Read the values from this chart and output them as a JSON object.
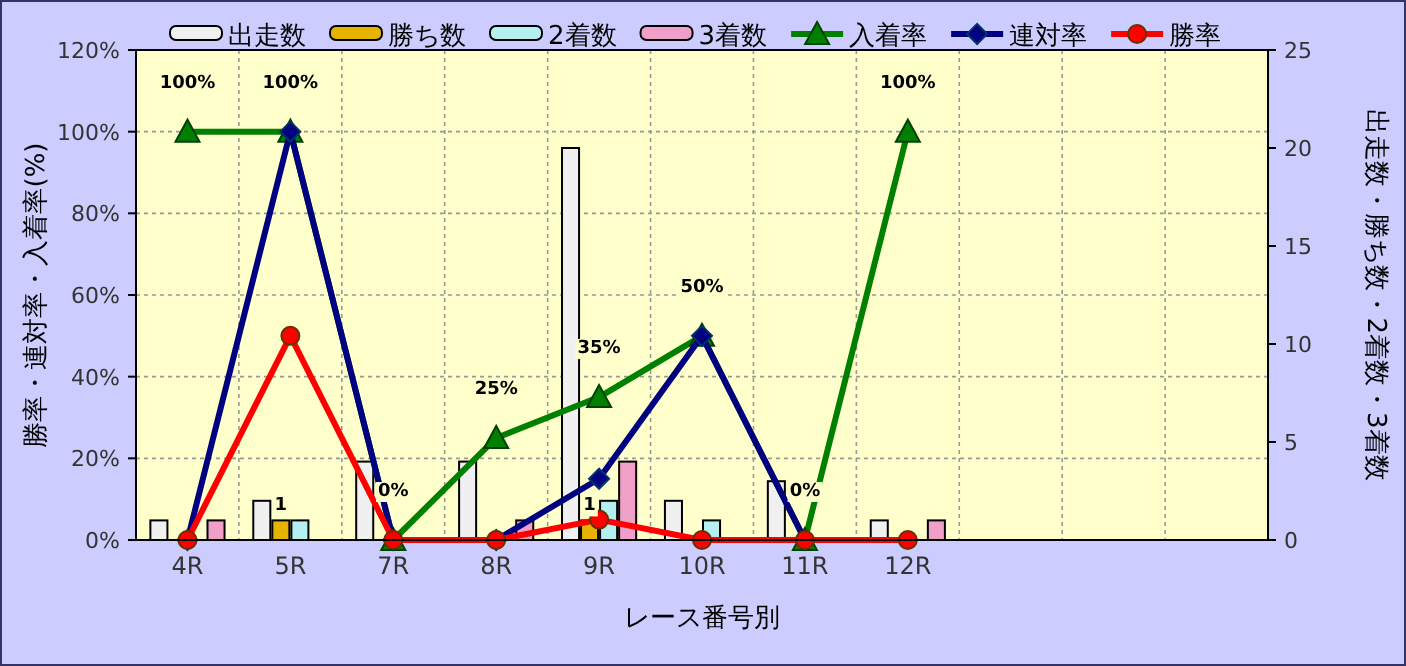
{
  "chart_data": {
    "type": "bar",
    "xlabel": "レース番号別",
    "ylabel": "勝率・連対率・入着率(%)",
    "y2label": "出走数・勝ち数・2着数・3着数",
    "categories": [
      "4R",
      "5R",
      "7R",
      "8R",
      "9R",
      "10R",
      "11R",
      "12R",
      null,
      null,
      null
    ],
    "ylim": [
      0,
      120
    ],
    "yticks": [
      {
        "value": 0,
        "label": "0%"
      },
      {
        "value": 20,
        "label": "20%"
      },
      {
        "value": 40,
        "label": "40%"
      },
      {
        "value": 60,
        "label": "60%"
      },
      {
        "value": 80,
        "label": "80%"
      },
      {
        "value": 100,
        "label": "100%"
      },
      {
        "value": 120,
        "label": "120%"
      }
    ],
    "y2lim": [
      0,
      25
    ],
    "y2ticks": [
      0,
      5,
      10,
      15,
      20,
      25
    ],
    "grid": true,
    "legend": "top",
    "series": [
      {
        "name": "出走数",
        "axis": "y2",
        "color": "#f0f0f0",
        "values": [
          1,
          2,
          4,
          4,
          20,
          2,
          3,
          1,
          null,
          null,
          null
        ]
      },
      {
        "name": "勝ち数",
        "axis": "y2",
        "color": "#e6b400",
        "values": [
          0,
          1,
          0,
          0,
          1,
          0,
          0,
          0,
          null,
          null,
          null
        ],
        "value_labels": [
          null,
          "1",
          null,
          null,
          "1",
          null,
          null,
          null,
          null,
          null,
          null
        ]
      },
      {
        "name": "2着数",
        "axis": "y2",
        "color": "#b4f0f0",
        "values": [
          0,
          1,
          0,
          0,
          2,
          1,
          0,
          0,
          null,
          null,
          null
        ]
      },
      {
        "name": "3着数",
        "axis": "y2",
        "color": "#f0a0c8",
        "values": [
          1,
          0,
          0,
          1,
          4,
          0,
          0,
          1,
          null,
          null,
          null
        ]
      },
      {
        "name": "入着率",
        "type": "line",
        "axis": "y",
        "color": "#008000",
        "marker": "triangle",
        "values": [
          100,
          100,
          0,
          25,
          35,
          50,
          0,
          100,
          null,
          null,
          null
        ],
        "value_labels": [
          "100%",
          "100%",
          "0%",
          "25%",
          "35%",
          "50%",
          "0%",
          "100%",
          null,
          null,
          null
        ]
      },
      {
        "name": "連対率",
        "type": "line",
        "axis": "y",
        "color": "#000080",
        "marker": "diamond",
        "values": [
          0,
          100,
          0,
          0,
          15,
          50,
          0,
          null,
          null,
          null,
          null
        ]
      },
      {
        "name": "勝率",
        "type": "line",
        "axis": "y",
        "color": "#ff0000",
        "marker": "circle",
        "values": [
          0,
          50,
          0,
          0,
          5,
          0,
          0,
          0,
          null,
          null,
          null
        ]
      }
    ]
  }
}
